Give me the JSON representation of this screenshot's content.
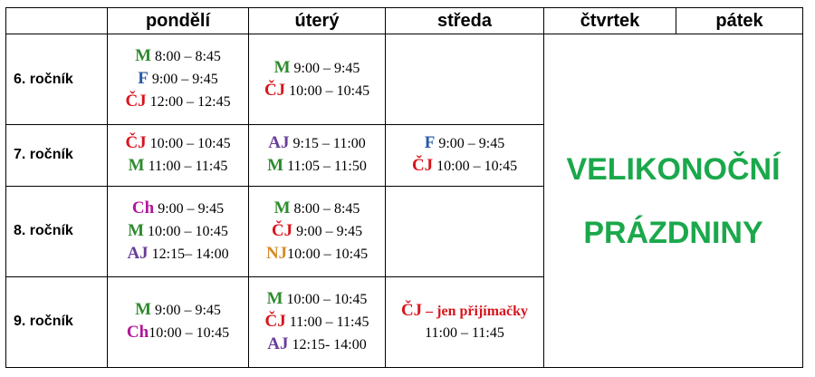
{
  "colors": {
    "green": "#2e8b2e",
    "blue": "#2659a6",
    "red": "#d8141c",
    "purple": "#6a3d9a",
    "magenta": "#b0179a",
    "orange": "#d58a2a",
    "holiday": "#1aa84b"
  },
  "header": {
    "days": [
      "pondělí",
      "úterý",
      "středa",
      "čtvrtek",
      "pátek"
    ]
  },
  "rows": [
    {
      "label": "6. ročník",
      "mon": [
        {
          "subj": "M",
          "time": "8:00 – 8:45"
        },
        {
          "subj": "F",
          "time": "9:00 – 9:45"
        },
        {
          "subj": "ČJ",
          "time": "12:00 – 12:45"
        }
      ],
      "tue": [
        {
          "subj": "M",
          "time": "9:00 – 9:45"
        },
        {
          "subj": "ČJ",
          "time": "10:00 – 10:45"
        }
      ]
    },
    {
      "label": "7. ročník",
      "mon": [
        {
          "subj": "ČJ",
          "time": "10:00 – 10:45"
        },
        {
          "subj": "M",
          "time": "11:00 – 11:45"
        }
      ],
      "tue": [
        {
          "subj": "AJ",
          "time": "9:15 – 11:00"
        },
        {
          "subj": "M",
          "time": "11:05 – 11:50"
        }
      ],
      "wed": [
        {
          "subj": "F",
          "time": "9:00 – 9:45"
        },
        {
          "subj": "ČJ",
          "time": "10:00 – 10:45"
        }
      ]
    },
    {
      "label": "8. ročník",
      "mon": [
        {
          "subj": "Ch",
          "time": "9:00 – 9:45"
        },
        {
          "subj": "M",
          "time": "10:00 – 10:45"
        },
        {
          "subj": "AJ",
          "time": "12:15– 14:00"
        }
      ],
      "tue": [
        {
          "subj": "M",
          "time": "8:00 – 8:45"
        },
        {
          "subj": "ČJ",
          "time": "9:00 – 9:45"
        },
        {
          "subj": "NJ",
          "time": "10:00 – 10:45"
        }
      ]
    },
    {
      "label": "9. ročník",
      "mon": [
        {
          "subj": "M",
          "time": "9:00 – 9:45"
        },
        {
          "subj": "Ch",
          "time": "10:00 – 10:45"
        }
      ],
      "tue": [
        {
          "subj": "M",
          "time": "10:00 – 10:45"
        },
        {
          "subj": "ČJ",
          "time": "11:00 – 11:45"
        },
        {
          "subj": "AJ",
          "time": "12:15- 14:00"
        }
      ],
      "wed_subj": "ČJ",
      "wed_note": "– jen přijímačky",
      "wed_time": "11:00 – 11:45"
    }
  ],
  "holiday": {
    "line1": "VELIKONOČNÍ",
    "line2": "PRÁZDNINY"
  }
}
